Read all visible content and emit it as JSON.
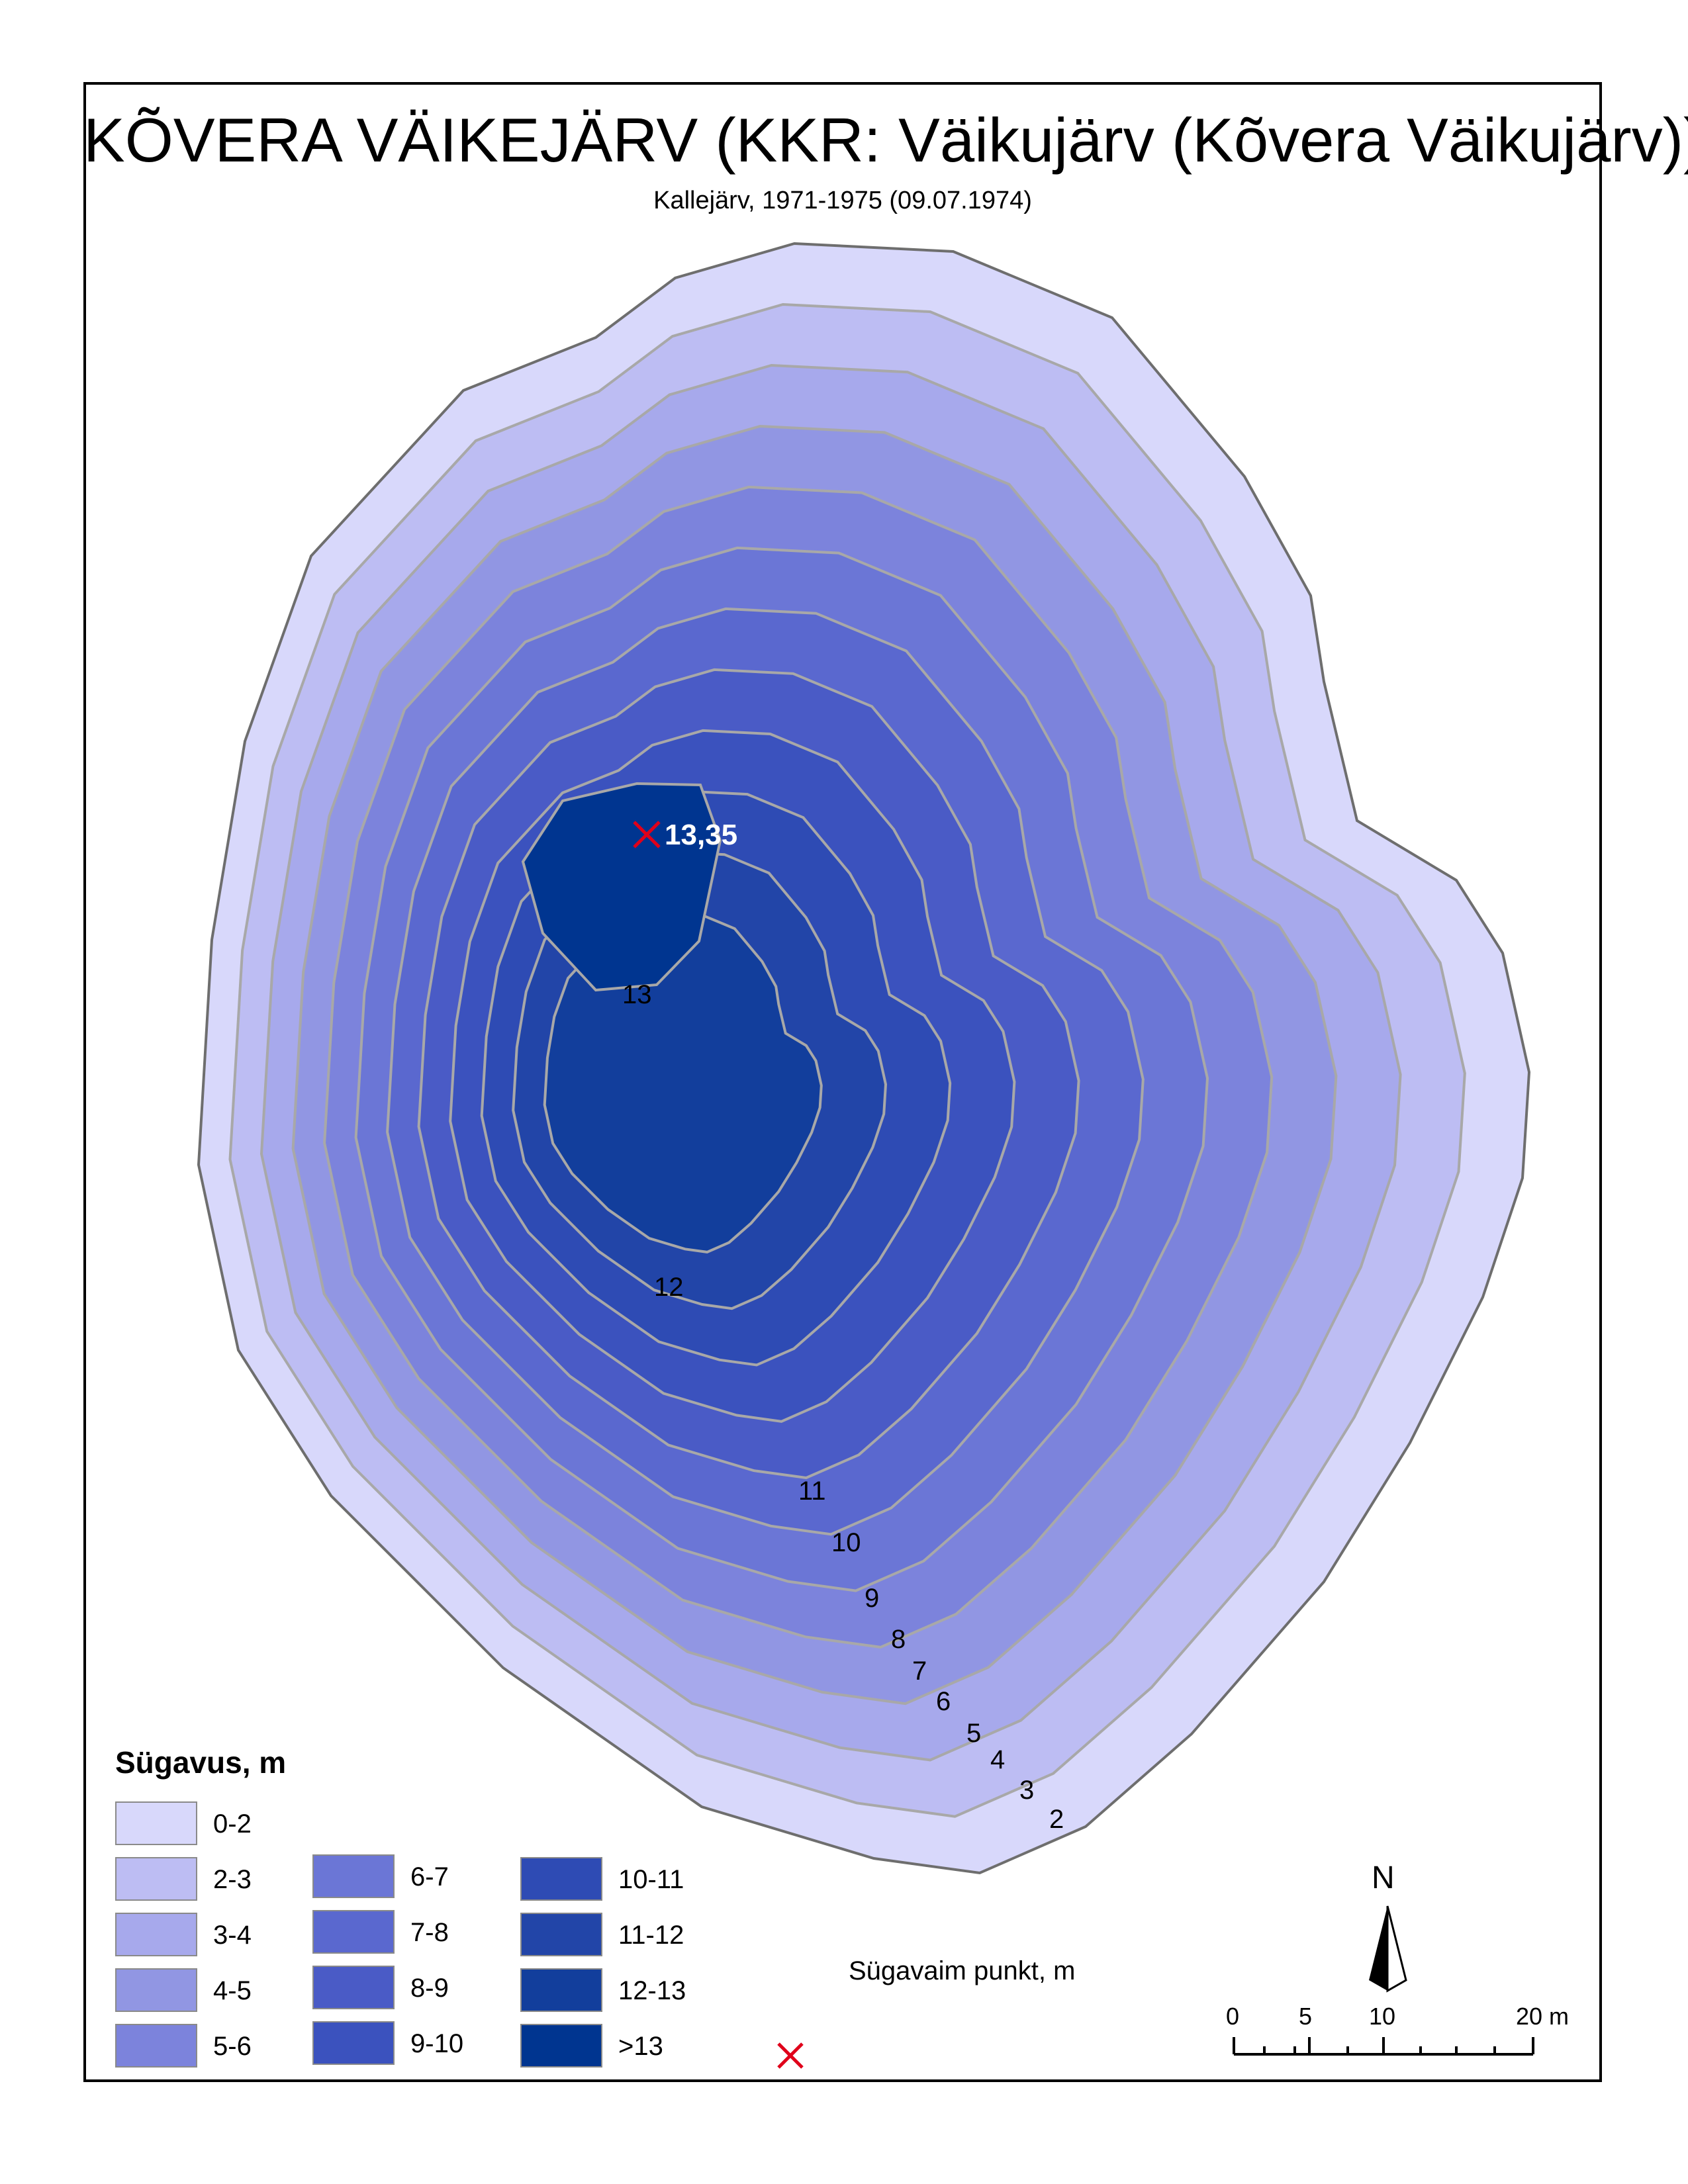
{
  "map": {
    "title": "KÕVERA VÄIKEJÄRV (KKR: Väikujärv (Kõvera Väikujärv))",
    "subtitle": "Kallejärv, 1971-1975 (09.07.1974)",
    "deepest_point_value": "13,35",
    "contour_labels": [
      "2",
      "3",
      "4",
      "5",
      "6",
      "7",
      "8",
      "9",
      "10",
      "11",
      "12",
      "13"
    ]
  },
  "legend": {
    "title": "Sügavus, m",
    "classes": [
      {
        "label": "0-2",
        "color": "#d8d8fb"
      },
      {
        "label": "2-3",
        "color": "#bdbdf3"
      },
      {
        "label": "3-4",
        "color": "#a7a9ec"
      },
      {
        "label": "4-5",
        "color": "#9196e3"
      },
      {
        "label": "5-6",
        "color": "#7c83dc"
      },
      {
        "label": "6-7",
        "color": "#6b76d6"
      },
      {
        "label": "7-8",
        "color": "#5a68cf"
      },
      {
        "label": "8-9",
        "color": "#4a5bc6"
      },
      {
        "label": "9-10",
        "color": "#3b52be"
      },
      {
        "label": "10-11",
        "color": "#2e4bb4"
      },
      {
        "label": "11-12",
        "color": "#2245a8"
      },
      {
        "label": "12-13",
        "color": "#123e9c"
      },
      {
        "label": ">13",
        "color": "#003590"
      }
    ],
    "deepest_point_label": "Sügavaim punkt, m",
    "deepest_point_color": "#e0001a"
  },
  "north_arrow": {
    "label": "N"
  },
  "scale_bar": {
    "labels": [
      "0",
      "5",
      "10",
      "20 m"
    ]
  }
}
